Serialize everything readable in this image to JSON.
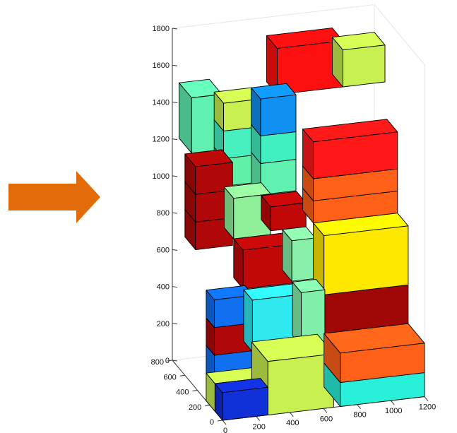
{
  "arrow_color": "#e36c0a",
  "chart_data": {
    "type": "3d-box-stack",
    "title": "",
    "xlabel": "",
    "ylabel": "",
    "zlabel": "",
    "xlim": [
      0,
      1200
    ],
    "ylim": [
      0,
      800
    ],
    "zlim": [
      0,
      1800
    ],
    "grid": false,
    "legend": "none",
    "x_ticks": [
      "0",
      "200",
      "400",
      "600",
      "800",
      "1000",
      "1200"
    ],
    "y_ticks": [
      "0",
      "200",
      "400",
      "600",
      "800"
    ],
    "z_ticks": [
      "0",
      "200",
      "400",
      "600",
      "800",
      "1000",
      "1200",
      "1400",
      "1600",
      "1800"
    ],
    "boxes": [
      {
        "x": [
          0,
          270
        ],
        "y": [
          0,
          120
        ],
        "z": [
          0,
          150
        ],
        "color": "#1030d8"
      },
      {
        "x": [
          0,
          270
        ],
        "y": [
          120,
          260
        ],
        "z": [
          0,
          150
        ],
        "color": "#c8f050"
      },
      {
        "x": [
          270,
          660
        ],
        "y": [
          0,
          260
        ],
        "z": [
          0,
          290
        ],
        "color": "#c8f050"
      },
      {
        "x": [
          700,
          1200
        ],
        "y": [
          0,
          260
        ],
        "z": [
          0,
          130
        ],
        "color": "#28f0d8"
      },
      {
        "x": [
          700,
          1200
        ],
        "y": [
          0,
          260
        ],
        "z": [
          130,
          290
        ],
        "color": "#ff6018"
      },
      {
        "x": [
          0,
          230
        ],
        "y": [
          130,
          260
        ],
        "z": [
          150,
          300
        ],
        "color": "#1070f0"
      },
      {
        "x": [
          0,
          230
        ],
        "y": [
          130,
          260
        ],
        "z": [
          300,
          450
        ],
        "color": "#b00808"
      },
      {
        "x": [
          0,
          230
        ],
        "y": [
          130,
          260
        ],
        "z": [
          450,
          600
        ],
        "color": "#1070f0"
      },
      {
        "x": [
          230,
          520
        ],
        "y": [
          140,
          280
        ],
        "z": [
          290,
          570
        ],
        "color": "#30e8f0"
      },
      {
        "x": [
          520,
          660
        ],
        "y": [
          140,
          280
        ],
        "z": [
          290,
          580
        ],
        "color": "#80f0a8"
      },
      {
        "x": [
          700,
          1200
        ],
        "y": [
          260,
          430
        ],
        "z": [
          290,
          500
        ],
        "color": "#a00808"
      },
      {
        "x": [
          700,
          1200
        ],
        "y": [
          260,
          430
        ],
        "z": [
          500,
          820
        ],
        "color": "#ffe800"
      },
      {
        "x": [
          230,
          520
        ],
        "y": [
          290,
          440
        ],
        "z": [
          570,
          780
        ],
        "color": "#c00808"
      },
      {
        "x": [
          520,
          660
        ],
        "y": [
          290,
          440
        ],
        "z": [
          580,
          800
        ],
        "color": "#88f0a8"
      },
      {
        "x": [
          230,
          450
        ],
        "y": [
          440,
          590
        ],
        "z": [
          780,
          1000
        ],
        "color": "#90f09a"
      },
      {
        "x": [
          450,
          660
        ],
        "y": [
          440,
          590
        ],
        "z": [
          800,
          930
        ],
        "color": "#c00808"
      },
      {
        "x": [
          700,
          1200
        ],
        "y": [
          430,
          600
        ],
        "z": [
          820,
          940
        ],
        "color": "#ff6018"
      },
      {
        "x": [
          700,
          1200
        ],
        "y": [
          430,
          600
        ],
        "z": [
          940,
          1060
        ],
        "color": "#ff6018"
      },
      {
        "x": [
          700,
          1200
        ],
        "y": [
          430,
          600
        ],
        "z": [
          1060,
          1260
        ],
        "color": "#ff1818"
      },
      {
        "x": [
          0,
          220
        ],
        "y": [
          430,
          600
        ],
        "z": [
          750,
          900
        ],
        "color": "#b00808"
      },
      {
        "x": [
          0,
          220
        ],
        "y": [
          430,
          600
        ],
        "z": [
          900,
          1050
        ],
        "color": "#b00808"
      },
      {
        "x": [
          0,
          220
        ],
        "y": [
          430,
          600
        ],
        "z": [
          1050,
          1200
        ],
        "color": "#b00808"
      },
      {
        "x": [
          230,
          450
        ],
        "y": [
          600,
          750
        ],
        "z": [
          1000,
          1150
        ],
        "color": "#60f0a8"
      },
      {
        "x": [
          450,
          660
        ],
        "y": [
          600,
          750
        ],
        "z": [
          930,
          1100
        ],
        "color": "#60f0b0"
      },
      {
        "x": [
          230,
          450
        ],
        "y": [
          600,
          750
        ],
        "z": [
          1150,
          1300
        ],
        "color": "#48f0c0"
      },
      {
        "x": [
          450,
          660
        ],
        "y": [
          600,
          750
        ],
        "z": [
          1100,
          1250
        ],
        "color": "#40f0c0"
      },
      {
        "x": [
          450,
          660
        ],
        "y": [
          600,
          750
        ],
        "z": [
          1250,
          1450
        ],
        "color": "#1090f0"
      },
      {
        "x": [
          230,
          450
        ],
        "y": [
          600,
          750
        ],
        "z": [
          1300,
          1450
        ],
        "color": "#c8f050"
      },
      {
        "x": [
          40,
          220
        ],
        "y": [
          600,
          800
        ],
        "z": [
          1200,
          1500
        ],
        "color": "#60f0b0"
      },
      {
        "x": [
          560,
          950
        ],
        "y": [
          630,
          800
        ],
        "z": [
          1450,
          1700
        ],
        "color": "#ff1010"
      },
      {
        "x": [
          950,
          1200
        ],
        "y": [
          630,
          800
        ],
        "z": [
          1450,
          1650
        ],
        "color": "#c8f050"
      }
    ]
  }
}
